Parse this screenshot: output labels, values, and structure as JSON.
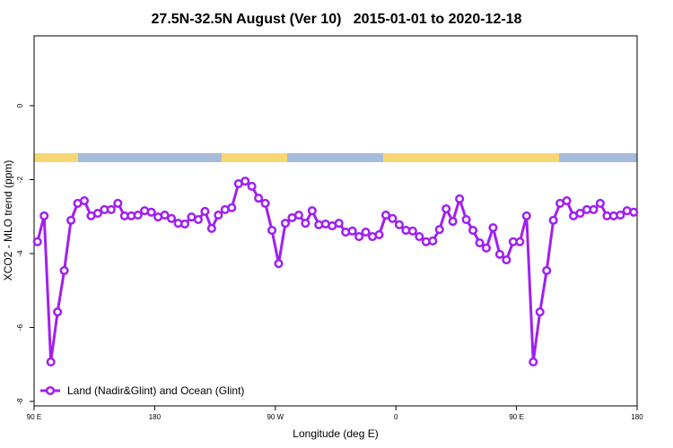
{
  "chart_data": {
    "type": "line",
    "title": "27.5N-32.5N August (Ver 10)   2015-01-01 to 2020-12-18",
    "x_label": "Longitude (deg E)",
    "y_label": "XCO2 - MLO trend (ppm)",
    "x": [
      92.5,
      97.5,
      102.5,
      107.5,
      112.5,
      117.5,
      122.5,
      127.5,
      132.5,
      137.5,
      142.5,
      147.5,
      152.5,
      157.5,
      162.5,
      167.5,
      172.5,
      177.5,
      182.5,
      187.5,
      192.5,
      197.5,
      202.5,
      207.5,
      212.5,
      217.5,
      222.5,
      227.5,
      232.5,
      237.5,
      242.5,
      247.5,
      252.5,
      257.5,
      262.5,
      267.5,
      272.5,
      277.5,
      282.5,
      287.5,
      292.5,
      297.5,
      302.5,
      307.5,
      312.5,
      317.5,
      322.5,
      327.5,
      332.5,
      337.5,
      342.5,
      347.5,
      352.5,
      357.5,
      362.5,
      367.5,
      372.5,
      377.5,
      382.5,
      387.5,
      392.5,
      397.5,
      402.5,
      407.5,
      412.5,
      417.5,
      422.5,
      427.5,
      432.5,
      437.5,
      442.5,
      447.5,
      452.5,
      457.5,
      462.5,
      467.5,
      472.5,
      477.5,
      482.5,
      487.5,
      492.5,
      497.5,
      502.5,
      507.5,
      512.5,
      517.5,
      522.5,
      527.5,
      532.5,
      537.5
    ],
    "series": [
      {
        "name": "Land (Nadir&Glint) and Ocean (Glint)",
        "color": "#a020f0",
        "values": [
          -3.68,
          -2.98,
          -6.93,
          -5.58,
          -4.46,
          -3.1,
          -2.64,
          -2.57,
          -2.98,
          -2.91,
          -2.81,
          -2.81,
          -2.64,
          -2.98,
          -2.98,
          -2.96,
          -2.84,
          -2.88,
          -3.01,
          -2.96,
          -3.05,
          -3.18,
          -3.2,
          -3.01,
          -3.08,
          -2.86,
          -3.32,
          -2.96,
          -2.81,
          -2.76,
          -2.11,
          -2.04,
          -2.18,
          -2.5,
          -2.64,
          -3.37,
          -4.27,
          -3.18,
          -3.03,
          -2.96,
          -3.18,
          -2.84,
          -3.22,
          -3.2,
          -3.25,
          -3.18,
          -3.42,
          -3.39,
          -3.54,
          -3.42,
          -3.54,
          -3.49,
          -2.96,
          -3.05,
          -3.22,
          -3.37,
          -3.39,
          -3.54,
          -3.68,
          -3.66,
          -3.35,
          -2.79,
          -3.13,
          -2.52,
          -3.08,
          -3.37,
          -3.71,
          -3.85,
          -3.3,
          -4.02,
          -4.17,
          -3.68,
          -3.68,
          -2.98,
          -6.93,
          -5.58,
          -4.46,
          -3.1,
          -2.64,
          -2.57,
          -2.98,
          -2.91,
          -2.81,
          -2.81,
          -2.64,
          -2.98,
          -2.98,
          -2.96,
          -2.84,
          -2.88
        ]
      }
    ],
    "xlim": [
      90,
      540
    ],
    "xticks": [
      {
        "value": 90,
        "label": "90 E"
      },
      180,
      {
        "value": 270,
        "label": "90 W"
      },
      {
        "value": 360,
        "label": "0"
      },
      {
        "value": 450,
        "label": "90 E"
      },
      {
        "value": 540,
        "label": "180"
      }
    ],
    "ylim": [
      -8.12,
      1.89
    ],
    "yticks": [
      0,
      -2,
      -4,
      -6,
      -8
    ],
    "legend": "bottom-left"
  }
}
